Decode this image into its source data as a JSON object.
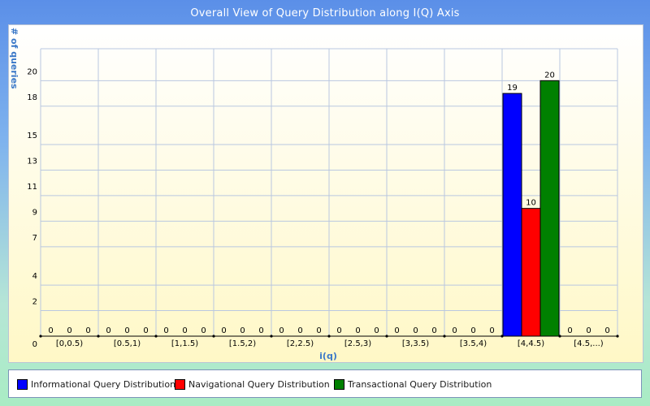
{
  "chart_data": {
    "type": "bar",
    "title": "Overall View of Query Distribution along I(Q) Axis",
    "xlabel": "i(q)",
    "ylabel": "# of queries",
    "categories": [
      "[0,0.5)",
      "[0.5,1)",
      "[1,1.5)",
      "[1.5,2)",
      "[2,2.5)",
      "[2.5,3)",
      "[3,3.5)",
      "[3.5,4)",
      "[4,4.5)",
      "[4.5,...)"
    ],
    "series": [
      {
        "name": "Informational Query Distribution",
        "color": "#0000ff",
        "values": [
          0,
          0,
          0,
          0,
          0,
          0,
          0,
          0,
          19,
          0
        ]
      },
      {
        "name": "Navigational Query Distribution",
        "color": "#ff0000",
        "values": [
          0,
          0,
          0,
          0,
          0,
          0,
          0,
          0,
          10,
          0
        ]
      },
      {
        "name": "Transactional Query Distribution",
        "color": "#008000",
        "values": [
          0,
          0,
          0,
          0,
          0,
          0,
          0,
          0,
          20,
          0
        ]
      }
    ],
    "yticks": [
      "0",
      "2",
      "4",
      "7",
      "9",
      "11",
      "13",
      "15",
      "18",
      "20"
    ],
    "ylim": [
      0,
      22.5
    ],
    "grid": true,
    "legend_position": "bottom"
  }
}
